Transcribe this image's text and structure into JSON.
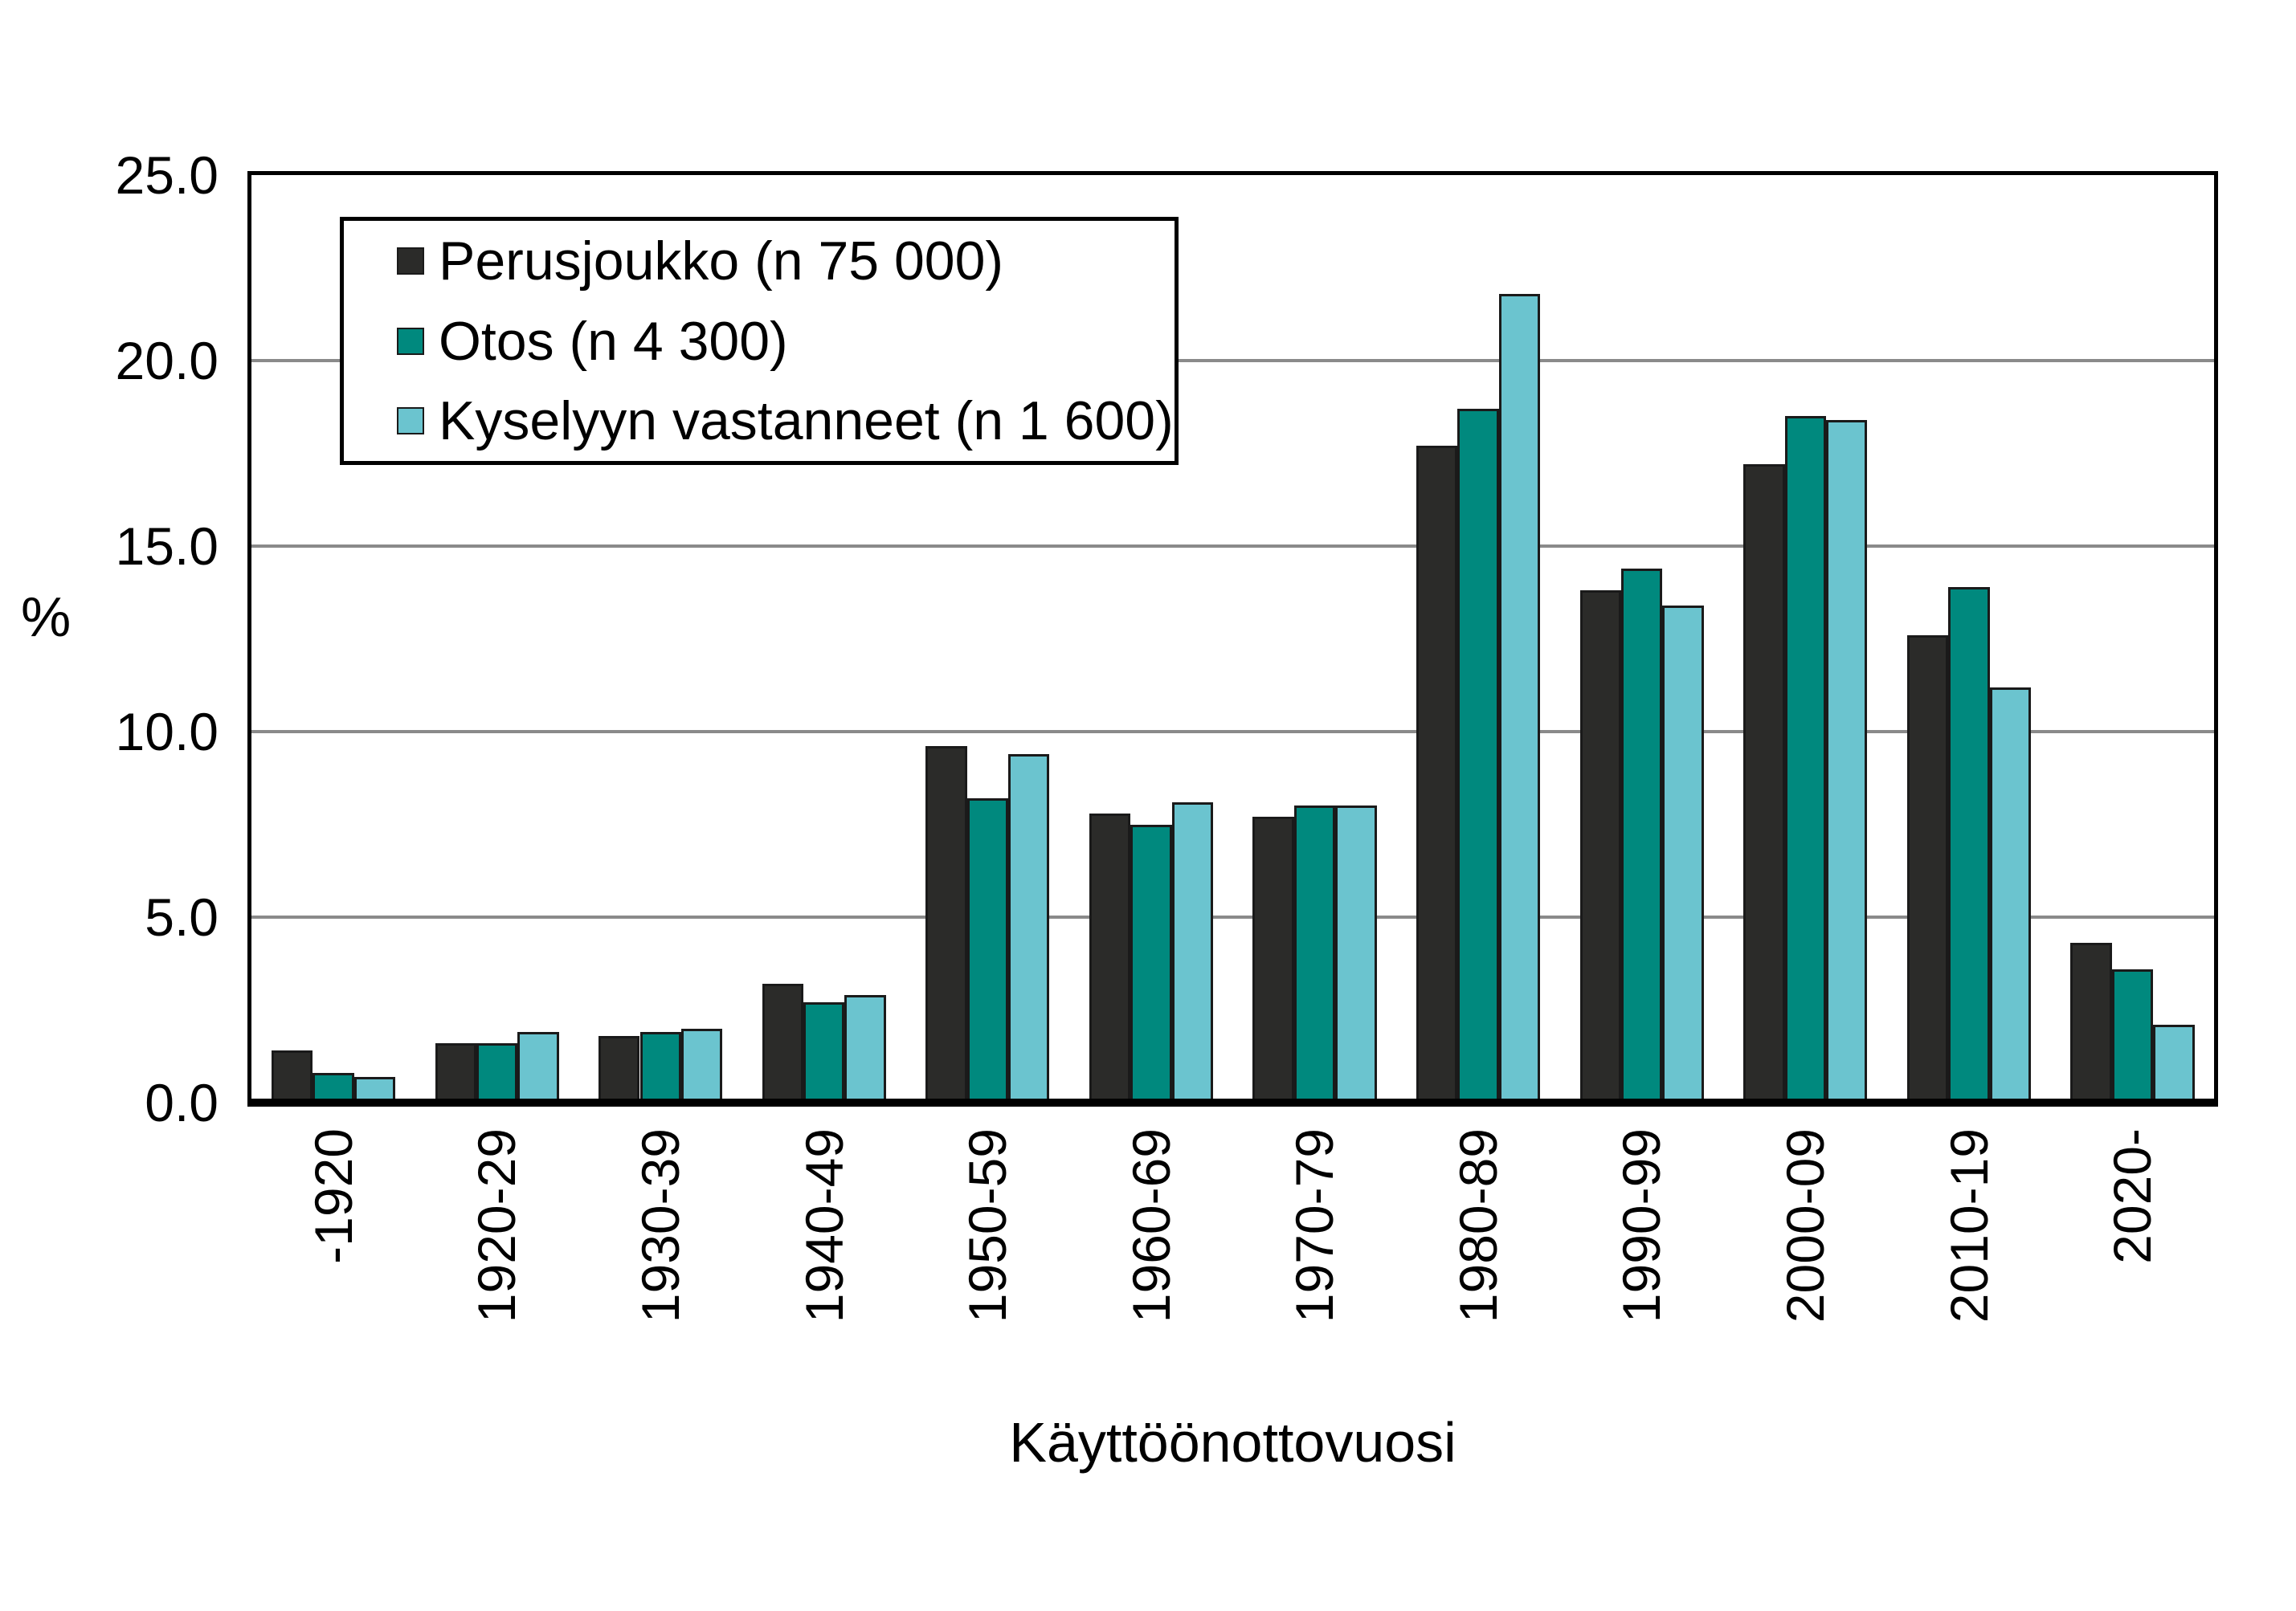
{
  "chart_data": {
    "type": "bar",
    "title": "",
    "xlabel": "Käyttöönottovuosi",
    "ylabel": "%",
    "ylim": [
      0,
      25
    ],
    "ytick_values": [
      0,
      5,
      10,
      15,
      20,
      25
    ],
    "ytick_labels": [
      "0.0",
      "5.0",
      "10.0",
      "15.0",
      "20.0",
      "25.0"
    ],
    "grid": true,
    "legend_position": "top-left",
    "categories": [
      "-1920",
      "1920-29",
      "1930-39",
      "1940-49",
      "1950-59",
      "1960-69",
      "1970-79",
      "1980-89",
      "1990-99",
      "2000-09",
      "2010-19",
      "2020-"
    ],
    "series": [
      {
        "name": "Perusjoukko (n 75 000)",
        "color": "#2b2b29",
        "values": [
          1.4,
          1.6,
          1.8,
          3.2,
          9.6,
          7.8,
          7.7,
          17.7,
          13.8,
          17.2,
          12.6,
          4.3
        ]
      },
      {
        "name": "Otos (n 4 300)",
        "color": "#00897e",
        "values": [
          0.8,
          1.6,
          1.9,
          2.7,
          8.2,
          7.5,
          8.0,
          18.7,
          14.4,
          18.5,
          13.9,
          3.6
        ]
      },
      {
        "name": "Kyselyyn vastanneet (n 1 600)",
        "color": "#6bc4cf",
        "values": [
          0.7,
          1.9,
          2.0,
          2.9,
          9.4,
          8.1,
          8.0,
          21.8,
          13.4,
          18.4,
          11.2,
          2.1
        ]
      }
    ],
    "colors": {
      "grid": "#8a8a8a",
      "axis": "#000000",
      "bar_outline": "#1a1a1a"
    }
  }
}
